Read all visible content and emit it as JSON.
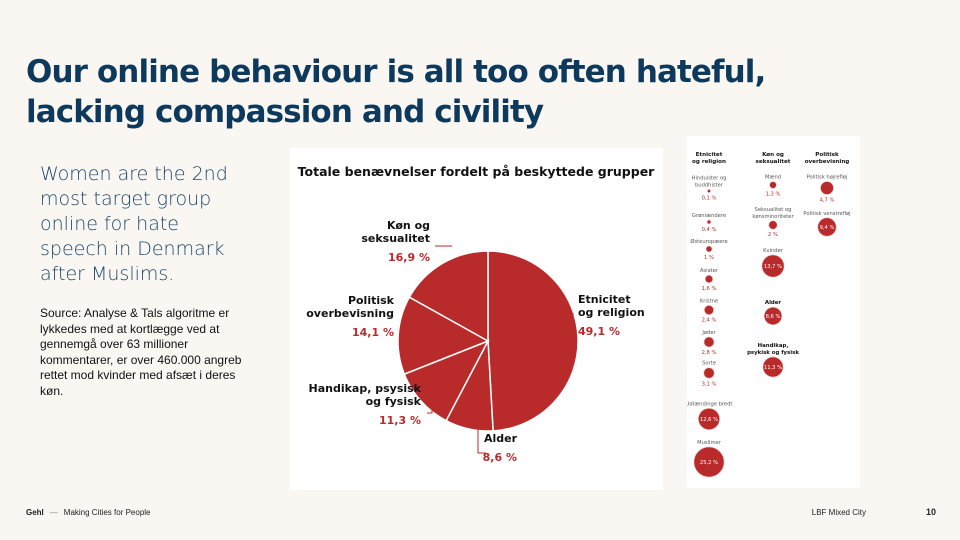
{
  "slide": {
    "title": "Our online behaviour is all too often hateful, lacking compassion and civility",
    "lead": "Women are the 2nd most target group online for hate speech in Denmark after Muslims.",
    "source": "Source: Analyse & Tals algoritme  er lykkedes med at kortlægge  ved at gennemgå over 63 millioner kommentarer, er over 460.000  angreb rettet mod kvinder med afsæt i deres køn.",
    "colors": {
      "title": "#0d3a5c",
      "accent": "#b92a2a",
      "background": "#faf6f2"
    }
  },
  "chart_data": [
    {
      "type": "pie",
      "title": "Totale benævnelser fordelt på beskyttede grupper",
      "slices": [
        {
          "name": "Etnicitet og religion",
          "label_lines": [
            "Etnicitet",
            "og religion"
          ],
          "value": 49.1,
          "value_text": "49,1 %"
        },
        {
          "name": "Alder",
          "label_lines": [
            "Alder"
          ],
          "value": 8.6,
          "value_text": "8,6 %"
        },
        {
          "name": "Handikap, psysisk og fysisk",
          "label_lines": [
            "Handikap, psysisk",
            "og fysisk"
          ],
          "value": 11.3,
          "value_text": "11,3 %"
        },
        {
          "name": "Politisk overbevisning",
          "label_lines": [
            "Politisk",
            "overbevisning"
          ],
          "value": 14.1,
          "value_text": "14,1 %"
        },
        {
          "name": "Køn og seksualitet",
          "label_lines": [
            "Køn og",
            "seksualitet"
          ],
          "value": 16.9,
          "value_text": "16,9 %"
        }
      ]
    },
    {
      "type": "scatter",
      "title": "",
      "columns": [
        {
          "header_lines": [
            "Etnicitet",
            "og religion"
          ],
          "items": [
            {
              "label_lines": [
                "Hinduister og",
                "buddhister"
              ],
              "value": 0.1,
              "value_text": "0,1 %"
            },
            {
              "label_lines": [
                "Grønlændere"
              ],
              "value": 0.4,
              "value_text": "0,4 %"
            },
            {
              "label_lines": [
                "Østeuropæere"
              ],
              "value": 1.0,
              "value_text": "1 %"
            },
            {
              "label_lines": [
                "Asiater"
              ],
              "value": 1.6,
              "value_text": "1,6 %"
            },
            {
              "label_lines": [
                "Kristne"
              ],
              "value": 2.4,
              "value_text": "2,4 %"
            },
            {
              "label_lines": [
                "Jøder"
              ],
              "value": 2.8,
              "value_text": "2,8 %"
            },
            {
              "label_lines": [
                "Sorte"
              ],
              "value": 3.1,
              "value_text": "3,1 %"
            },
            {
              "label_lines": [
                "Udlændinge bredt"
              ],
              "value": 12.6,
              "value_text": "12,6 %"
            },
            {
              "label_lines": [
                "Muslimer"
              ],
              "value": 25.2,
              "value_text": "25,2 %"
            }
          ]
        },
        {
          "header_lines": [
            "Køn og",
            "seksualitet"
          ],
          "items": [
            {
              "label_lines": [
                "Mænd"
              ],
              "value": 1.3,
              "value_text": "1,3 %"
            },
            {
              "label_lines": [
                "Seksualitet og",
                "kønsminoriteter"
              ],
              "value": 2.0,
              "value_text": "2 %"
            },
            {
              "label_lines": [
                "Kvinder"
              ],
              "value": 13.7,
              "value_text": "13,7 %"
            },
            {
              "label_lines": [],
              "group_lines": [
                "Alder"
              ],
              "value": 8.6,
              "value_text": "8,6 %"
            },
            {
              "label_lines": [],
              "group_lines": [
                "Handikap,",
                "psykisk og fysisk"
              ],
              "value": 11.3,
              "value_text": "11,3 %"
            }
          ]
        },
        {
          "header_lines": [
            "Politisk",
            "overbevisning"
          ],
          "items": [
            {
              "label_lines": [
                "Politisk højrefløj"
              ],
              "value": 4.7,
              "value_text": "4,7 %"
            },
            {
              "label_lines": [
                "Politisk venstrefløj"
              ],
              "value": 9.4,
              "value_text": "9,4 %"
            }
          ]
        }
      ]
    }
  ],
  "footer": {
    "brand": "Gehl",
    "dash": "—",
    "tagline": "Making Cities for People",
    "project": "LBF Mixed City",
    "page_number": "10"
  }
}
